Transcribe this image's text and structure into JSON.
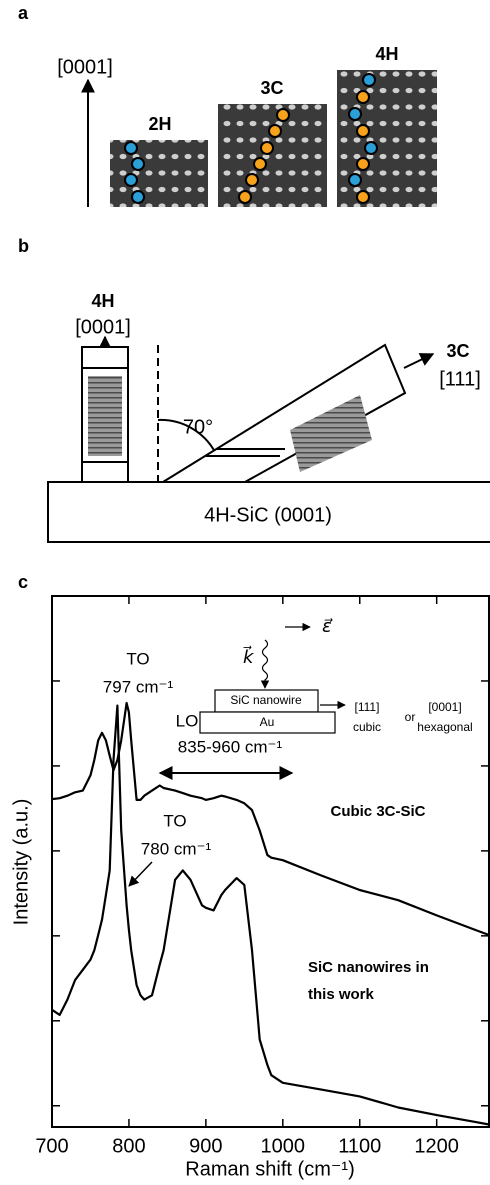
{
  "panel_a": {
    "label": "a",
    "axis_label": "[0001]",
    "polytypes": [
      "2H",
      "3C",
      "4H"
    ]
  },
  "panel_b": {
    "label": "b",
    "left_label": "4H",
    "left_direction": "[0001]",
    "angle": "70°",
    "right_label": "3C",
    "right_direction": "[111]",
    "substrate": "4H-SiC (0001)"
  },
  "chart_data": {
    "type": "line",
    "panel_label": "c",
    "xlabel": "Raman shift  (cm⁻¹)",
    "ylabel": "Intensity (a.u.)",
    "x": [
      700,
      710,
      720,
      730,
      740,
      750,
      755,
      760,
      765,
      770,
      775,
      780,
      785,
      790,
      797,
      800,
      803,
      810,
      815,
      820,
      830,
      840,
      845,
      860,
      870,
      880,
      895,
      900,
      910,
      920,
      925,
      940,
      950,
      960,
      970,
      980,
      985,
      1000,
      1050,
      1100,
      1150,
      1200,
      1250,
      1268
    ],
    "series": [
      {
        "name": "Cubic 3C-SiC",
        "color": "#000000",
        "values": [
          3.61,
          3.62,
          3.65,
          3.69,
          3.71,
          3.89,
          4.07,
          4.3,
          4.39,
          4.3,
          4.12,
          3.95,
          4.07,
          4.3,
          4.74,
          4.63,
          4.3,
          3.6,
          3.6,
          3.65,
          3.71,
          3.77,
          3.74,
          3.71,
          3.68,
          3.65,
          3.62,
          3.6,
          3.62,
          3.65,
          3.64,
          3.6,
          3.56,
          3.48,
          3.24,
          2.95,
          2.92,
          2.89,
          2.71,
          2.54,
          2.42,
          2.24,
          2.07,
          2.01
        ]
      },
      {
        "name": "SiC nanowires in this work",
        "color": "#000000",
        "values": [
          1.13,
          1.07,
          1.25,
          1.48,
          1.6,
          1.72,
          1.83,
          2.01,
          2.19,
          2.48,
          2.77,
          4.07,
          4.71,
          3.24,
          2.36,
          2.07,
          1.83,
          1.42,
          1.3,
          1.25,
          1.3,
          1.66,
          1.83,
          2.66,
          2.77,
          2.66,
          2.36,
          2.33,
          2.3,
          2.48,
          2.54,
          2.68,
          2.6,
          1.83,
          0.78,
          0.48,
          0.36,
          0.27,
          0.19,
          0.11,
          -0.02,
          -0.11,
          -0.19,
          -0.22
        ]
      }
    ],
    "xlim": [
      700,
      1268
    ],
    "xticks": [
      700,
      800,
      900,
      1000,
      1100,
      1200
    ],
    "ylim": [
      -0.25,
      6
    ],
    "yticks": [
      0,
      1,
      2,
      3,
      4,
      5,
      6
    ],
    "annotations": {
      "to_3c": "TO",
      "to_3c_value": "797 cm⁻¹",
      "lo": "LO",
      "lo_range": "835-960 cm⁻¹",
      "to_nw": "TO",
      "to_nw_value": "780 cm⁻¹"
    },
    "inset": {
      "wavevector": "k⃗",
      "polarization": "ε⃗",
      "wire": "SiC nanowire",
      "substrate": "Au",
      "cubic_dir": "[111]",
      "cubic": "cubic",
      "or": "or",
      "hex_dir": "[0001]",
      "hexagonal": "hexagonal"
    }
  }
}
